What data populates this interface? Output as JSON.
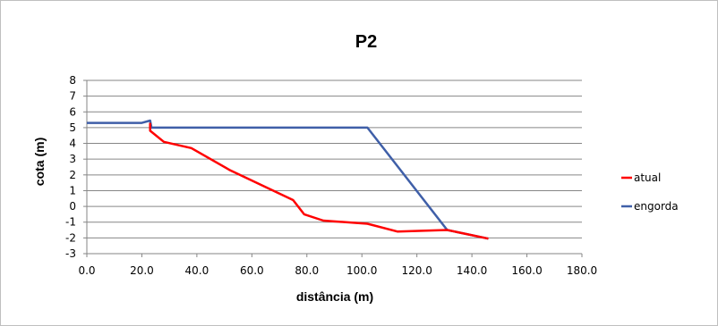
{
  "chart_data": {
    "type": "line",
    "title": "P2",
    "xlabel": "distância (m)",
    "ylabel": "cota (m)",
    "xlim": [
      0,
      180
    ],
    "ylim": [
      -3,
      8
    ],
    "x_ticks": [
      "0.0",
      "20.0",
      "40.0",
      "60.0",
      "80.0",
      "100.0",
      "120.0",
      "140.0",
      "160.0",
      "180.0"
    ],
    "y_ticks": [
      "8",
      "7",
      "6",
      "5",
      "4",
      "3",
      "2",
      "1",
      "0",
      "-1",
      "-2",
      "-3"
    ],
    "grid": "horizontal",
    "legend_position": "right",
    "series": [
      {
        "name": "atual",
        "color": "#ff0000",
        "points": [
          [
            23,
            5.3
          ],
          [
            23,
            4.8
          ],
          [
            28,
            4.1
          ],
          [
            38,
            3.7
          ],
          [
            52,
            2.3
          ],
          [
            75,
            0.4
          ],
          [
            79,
            -0.5
          ],
          [
            86,
            -0.9
          ],
          [
            102,
            -1.1
          ],
          [
            113,
            -1.6
          ],
          [
            131,
            -1.5
          ],
          [
            146,
            -2.05
          ]
        ]
      },
      {
        "name": "engorda",
        "color": "#3f5fa8",
        "points": [
          [
            0,
            5.3
          ],
          [
            20,
            5.3
          ],
          [
            23,
            5.45
          ],
          [
            23.5,
            5.0
          ],
          [
            102,
            5.0
          ],
          [
            131,
            -1.5
          ],
          [
            146,
            -2.05
          ]
        ]
      }
    ]
  }
}
